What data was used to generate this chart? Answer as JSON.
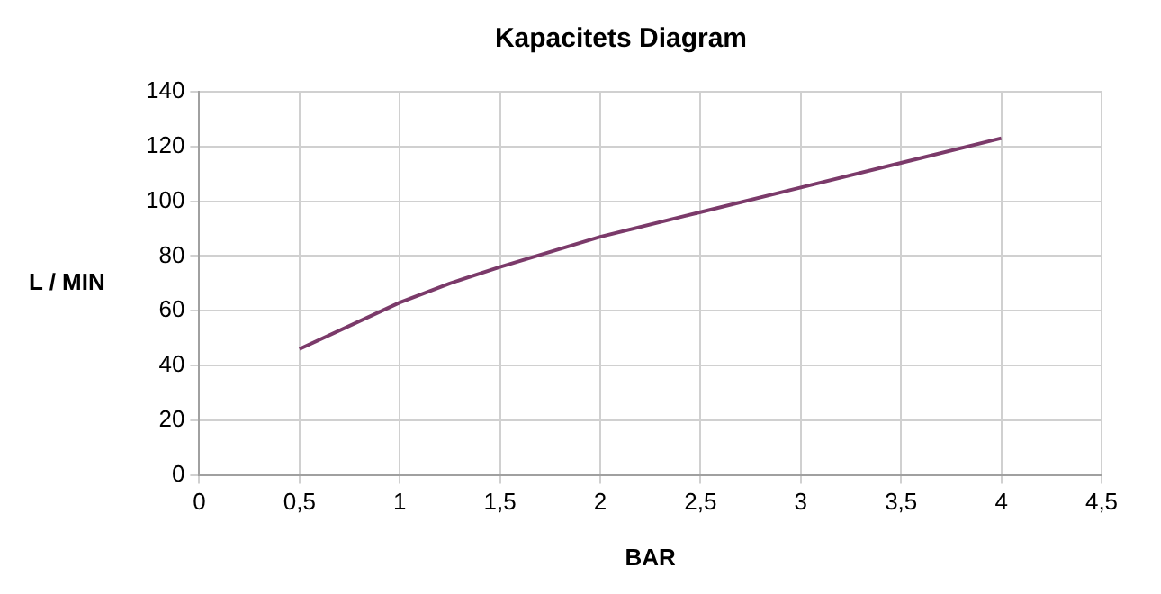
{
  "chart_data": {
    "type": "line",
    "title": "Kapacitets Diagram",
    "xlabel": "BAR",
    "ylabel": "L / MIN",
    "x": [
      0.5,
      1,
      1.25,
      1.5,
      2,
      2.5,
      3,
      3.5,
      4
    ],
    "series": [
      {
        "color": "#7b3a6a",
        "values": [
          46,
          63,
          70,
          76,
          87,
          96,
          105,
          114,
          123
        ]
      }
    ],
    "xlim": [
      0,
      4.5
    ],
    "xticks": [
      0,
      {
        "value": 0.5,
        "label": "0,5"
      },
      1,
      {
        "value": 1.5,
        "label": "1,5"
      },
      2,
      {
        "value": 2.5,
        "label": "2,5"
      },
      3,
      {
        "value": 3.5,
        "label": "3,5"
      },
      4,
      {
        "value": 4.5,
        "label": "4,5"
      }
    ],
    "ylim": [
      0,
      140
    ],
    "yticks": [
      0,
      20,
      40,
      60,
      80,
      100,
      120,
      140
    ],
    "grid": true,
    "legend": false,
    "marker": "none",
    "line_style": "solid"
  }
}
